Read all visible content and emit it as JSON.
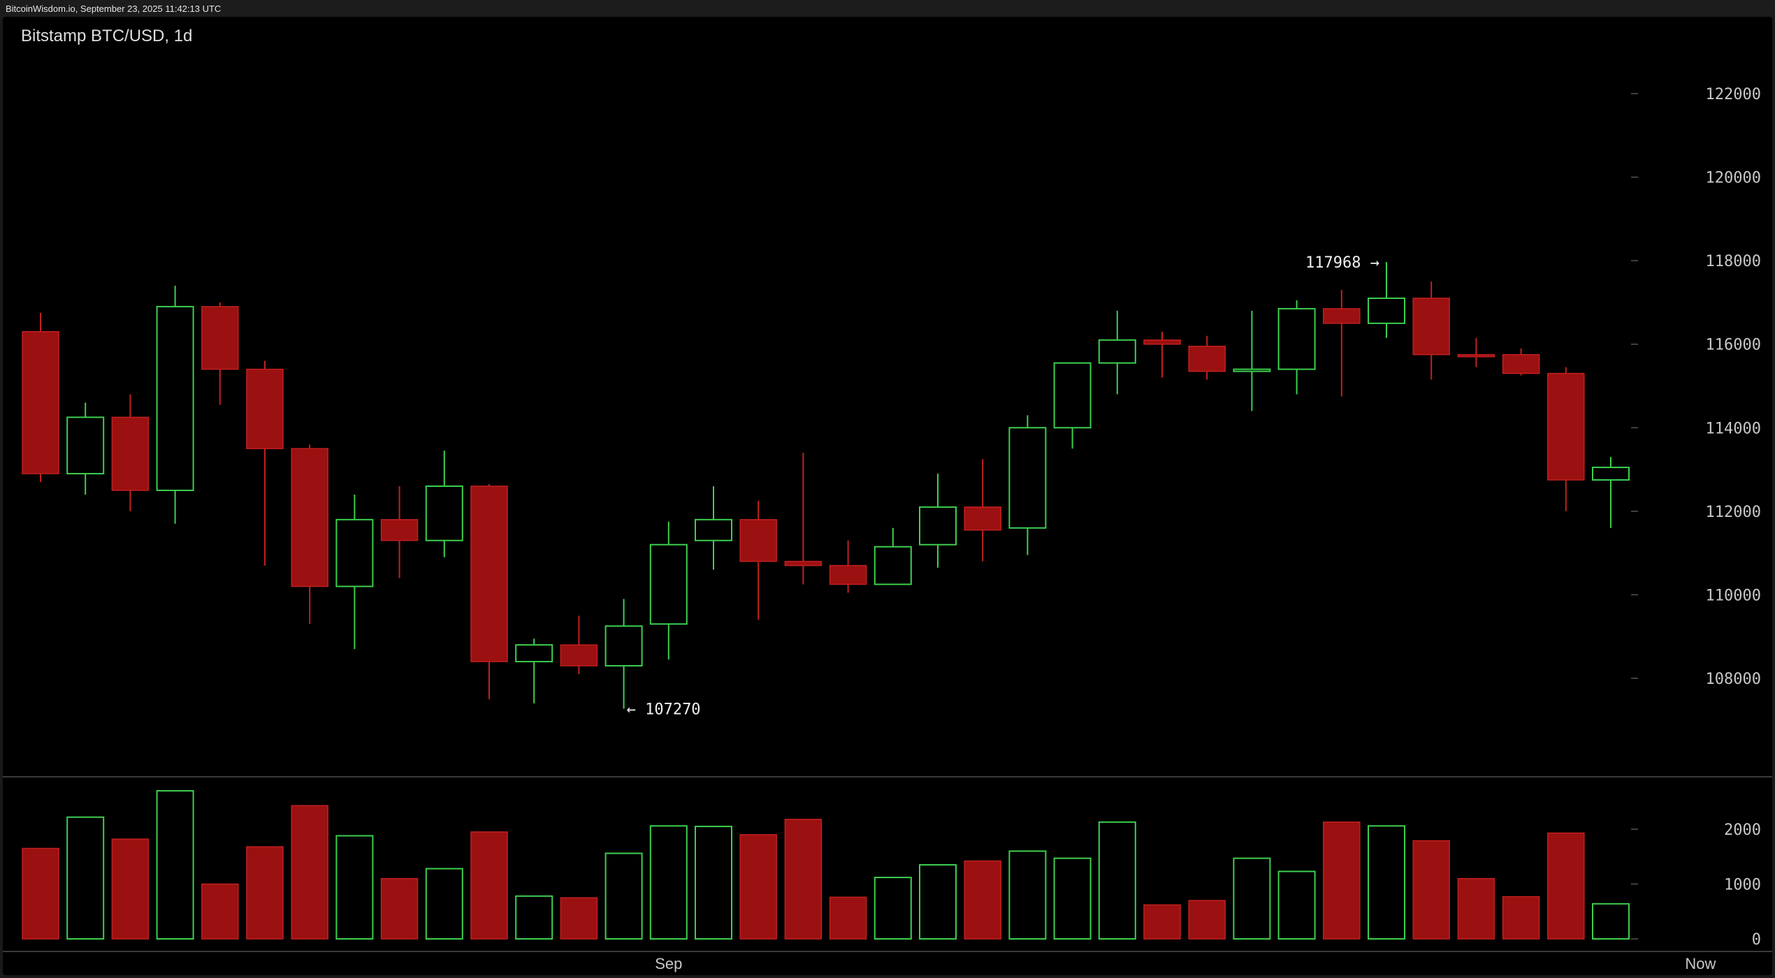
{
  "header": {
    "source": "BitcoinWisdom.io, September 23, 2025 11:42:13 UTC"
  },
  "chart": {
    "title": "Bitstamp BTC/USD, 1d"
  },
  "colors": {
    "up": "#3ccf4e",
    "down": "#9b1010",
    "down_stroke": "#c22020",
    "background": "#000000",
    "axis_text": "#c8c8c8"
  },
  "chart_data": {
    "type": "candlestick",
    "price_ylim": [
      105800,
      123200
    ],
    "volume_ylim": [
      0,
      2900
    ],
    "price_ticks": [
      "108000",
      "110000",
      "112000",
      "114000",
      "116000",
      "118000",
      "120000",
      "122000"
    ],
    "volume_ticks": [
      "0",
      "1000",
      "2000"
    ],
    "x_labels": [
      {
        "label": "Sep",
        "index": 14
      },
      {
        "label": "Now",
        "index": 37
      }
    ],
    "annotations": {
      "high": {
        "text": "117968 →",
        "index": 30,
        "value": 117968
      },
      "low": {
        "text": "← 107270",
        "index": 13,
        "value": 107270
      }
    },
    "candles": [
      {
        "o": 116300,
        "h": 116750,
        "l": 112700,
        "c": 112900,
        "v": 1650
      },
      {
        "o": 112900,
        "h": 114600,
        "l": 112400,
        "c": 114250,
        "v": 2220
      },
      {
        "o": 114250,
        "h": 114800,
        "l": 112000,
        "c": 112500,
        "v": 1820
      },
      {
        "o": 112500,
        "h": 117400,
        "l": 111700,
        "c": 116900,
        "v": 2700
      },
      {
        "o": 116900,
        "h": 117000,
        "l": 114550,
        "c": 115400,
        "v": 1000
      },
      {
        "o": 115400,
        "h": 115600,
        "l": 110700,
        "c": 113500,
        "v": 1680
      },
      {
        "o": 113500,
        "h": 113600,
        "l": 109300,
        "c": 110200,
        "v": 2430
      },
      {
        "o": 110200,
        "h": 112400,
        "l": 108700,
        "c": 111800,
        "v": 1880
      },
      {
        "o": 111800,
        "h": 112600,
        "l": 110400,
        "c": 111300,
        "v": 1100
      },
      {
        "o": 111300,
        "h": 113450,
        "l": 110900,
        "c": 112600,
        "v": 1280
      },
      {
        "o": 112600,
        "h": 112650,
        "l": 107500,
        "c": 108400,
        "v": 1950
      },
      {
        "o": 108400,
        "h": 108950,
        "l": 107400,
        "c": 108800,
        "v": 780
      },
      {
        "o": 108800,
        "h": 109500,
        "l": 108100,
        "c": 108300,
        "v": 750
      },
      {
        "o": 108300,
        "h": 109900,
        "l": 107270,
        "c": 109250,
        "v": 1560
      },
      {
        "o": 109300,
        "h": 111750,
        "l": 108450,
        "c": 111200,
        "v": 2060
      },
      {
        "o": 111300,
        "h": 112600,
        "l": 110600,
        "c": 111800,
        "v": 2050
      },
      {
        "o": 111800,
        "h": 112250,
        "l": 109400,
        "c": 110800,
        "v": 1900
      },
      {
        "o": 110800,
        "h": 113400,
        "l": 110250,
        "c": 110700,
        "v": 2180
      },
      {
        "o": 110700,
        "h": 111300,
        "l": 110050,
        "c": 110250,
        "v": 760
      },
      {
        "o": 110250,
        "h": 111600,
        "l": 110250,
        "c": 111150,
        "v": 1120
      },
      {
        "o": 111200,
        "h": 112900,
        "l": 110650,
        "c": 112100,
        "v": 1350
      },
      {
        "o": 112100,
        "h": 113250,
        "l": 110800,
        "c": 111550,
        "v": 1420
      },
      {
        "o": 111600,
        "h": 114300,
        "l": 110950,
        "c": 114000,
        "v": 1600
      },
      {
        "o": 114000,
        "h": 115550,
        "l": 113500,
        "c": 115550,
        "v": 1470
      },
      {
        "o": 115550,
        "h": 116800,
        "l": 114800,
        "c": 116100,
        "v": 2130
      },
      {
        "o": 116100,
        "h": 116300,
        "l": 115200,
        "c": 116000,
        "v": 620
      },
      {
        "o": 115950,
        "h": 116200,
        "l": 115150,
        "c": 115350,
        "v": 700
      },
      {
        "o": 115350,
        "h": 116800,
        "l": 114400,
        "c": 115400,
        "v": 1470
      },
      {
        "o": 115400,
        "h": 117050,
        "l": 114800,
        "c": 116850,
        "v": 1230
      },
      {
        "o": 116850,
        "h": 117300,
        "l": 114750,
        "c": 116500,
        "v": 2130
      },
      {
        "o": 116500,
        "h": 117968,
        "l": 116150,
        "c": 117100,
        "v": 2060
      },
      {
        "o": 117100,
        "h": 117500,
        "l": 115150,
        "c": 115750,
        "v": 1790
      },
      {
        "o": 115750,
        "h": 116150,
        "l": 115450,
        "c": 115700,
        "v": 1100
      },
      {
        "o": 115750,
        "h": 115900,
        "l": 115250,
        "c": 115300,
        "v": 770
      },
      {
        "o": 115300,
        "h": 115450,
        "l": 112000,
        "c": 112750,
        "v": 1930
      },
      {
        "o": 112750,
        "h": 113300,
        "l": 111600,
        "c": 113050,
        "v": 640
      }
    ]
  }
}
